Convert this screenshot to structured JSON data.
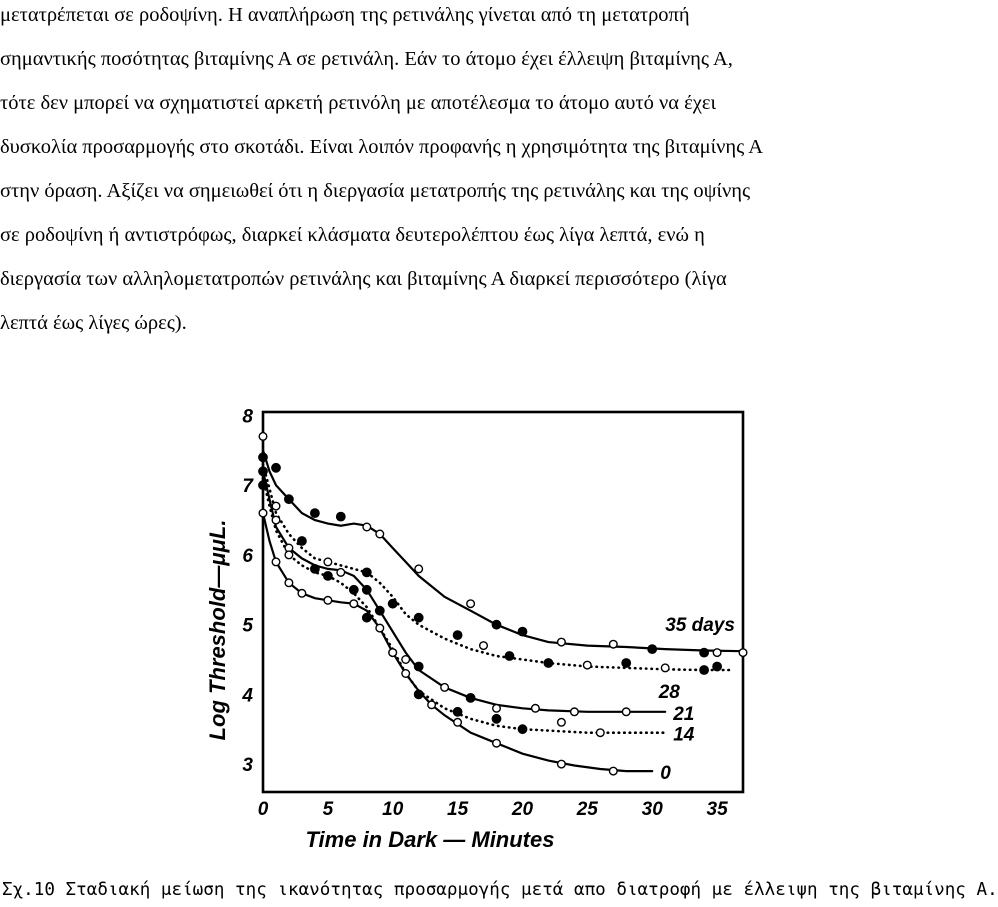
{
  "paragraph": {
    "lines": [
      "μετατρέπεται σε ροδοψίνη. Η αναπλήρωση της ρετινάλης γίνεται από τη μετατροπή",
      "σημαντικής ποσότητας βιταμίνης Α σε ρετινάλη. Εάν το άτομο έχει έλλειψη βιταμίνης Α,",
      "τότε δεν μπορεί να σχηματιστεί αρκετή ρετινόλη με αποτέλεσμα το άτομο αυτό να έχει",
      "δυσκολία προσαρμογής στο σκοτάδι. Είναι λοιπόν προφανής η χρησιμότητα της βιταμίνης Α",
      "στην όραση. Αξίζει να σημειωθεί ότι η διεργασία μετατροπής της ρετινάλης και της οψίνης",
      "σε ροδοψίνη ή αντιστρόφως, διαρκεί κλάσματα δευτερολέπτου έως λίγα λεπτά, ενώ η",
      "διεργασία των αλληλομετατροπών ρετινάλης και βιταμίνης Α διαρκεί περισσότερο (λίγα",
      "λεπτά έως λίγες ώρες)."
    ]
  },
  "figure": {
    "caption": "Σχ.10 Σταδιακή μείωση της ικανότητας προσαρμογής μετά απο διατροφή με έλλειψη της βιταμίνης Α."
  },
  "chart_data": {
    "type": "line",
    "xlabel": "Time in Dark — Minutes",
    "ylabel": "Log Threshold—μμL.",
    "xlim": [
      0,
      37
    ],
    "ylim": [
      2.6,
      8.05
    ],
    "x_ticks": [
      "0",
      "5",
      "10",
      "15",
      "20",
      "25",
      "30",
      "35"
    ],
    "y_ticks": [
      "3",
      "4",
      "5",
      "6",
      "7",
      "8"
    ],
    "grid": false,
    "legend": "labels at right end of curves",
    "series": [
      {
        "name": "35 days",
        "line": "solid",
        "x": [
          0,
          0.5,
          1,
          2,
          3,
          4,
          5,
          6,
          7,
          8,
          9,
          10,
          11,
          12,
          14,
          16,
          18,
          20,
          22,
          25,
          28,
          31,
          34,
          37
        ],
        "y": [
          7.5,
          7.2,
          7.0,
          6.8,
          6.6,
          6.5,
          6.45,
          6.42,
          6.45,
          6.42,
          6.3,
          6.1,
          5.9,
          5.7,
          5.4,
          5.2,
          5.0,
          4.85,
          4.75,
          4.7,
          4.68,
          4.65,
          4.63,
          4.62
        ],
        "points_x": [
          0,
          1,
          2,
          4,
          6,
          8,
          9,
          12,
          16,
          18,
          20,
          23,
          27,
          30,
          34,
          35,
          37
        ],
        "points_y": [
          7.7,
          7.25,
          6.8,
          6.6,
          6.55,
          6.4,
          6.3,
          5.8,
          5.3,
          5.0,
          4.9,
          4.75,
          4.72,
          4.65,
          4.6,
          4.6,
          4.6
        ],
        "points_fill": [
          "open",
          "filled",
          "filled",
          "filled",
          "filled",
          "open",
          "open",
          "open",
          "open",
          "filled",
          "filled",
          "open",
          "open",
          "filled",
          "filled",
          "open",
          "open"
        ]
      },
      {
        "name": "28",
        "line": "dotted",
        "x": [
          0,
          0.5,
          1,
          2,
          3,
          4,
          5,
          6,
          7,
          8,
          9,
          10,
          11,
          12,
          14,
          16,
          18,
          20,
          22,
          25,
          28,
          31,
          34,
          36
        ],
        "y": [
          7.3,
          6.95,
          6.6,
          6.3,
          6.1,
          5.95,
          5.9,
          5.85,
          5.8,
          5.75,
          5.6,
          5.4,
          5.15,
          5.0,
          4.8,
          4.65,
          4.55,
          4.5,
          4.45,
          4.4,
          4.38,
          4.36,
          4.35,
          4.35
        ],
        "points_x": [
          0,
          1,
          3,
          5,
          8,
          10,
          12,
          15,
          17,
          19,
          22,
          25,
          28,
          31,
          34,
          35
        ],
        "points_y": [
          7.4,
          6.7,
          6.2,
          5.9,
          5.75,
          5.3,
          5.1,
          4.85,
          4.7,
          4.55,
          4.45,
          4.42,
          4.45,
          4.38,
          4.35,
          4.4
        ],
        "points_fill": [
          "filled",
          "open",
          "filled",
          "open",
          "filled",
          "filled",
          "filled",
          "filled",
          "open",
          "filled",
          "filled",
          "open",
          "filled",
          "open",
          "filled",
          "filled"
        ]
      },
      {
        "name": "21",
        "line": "solid",
        "x": [
          0,
          0.5,
          1,
          2,
          3,
          4,
          5,
          6,
          7,
          8,
          9,
          10,
          11,
          12,
          14,
          16,
          18,
          20,
          22,
          25,
          28,
          31
        ],
        "y": [
          7.2,
          6.8,
          6.4,
          6.1,
          5.95,
          5.85,
          5.8,
          5.78,
          5.7,
          5.5,
          5.2,
          4.9,
          4.6,
          4.35,
          4.1,
          3.95,
          3.85,
          3.8,
          3.77,
          3.75,
          3.75,
          3.75
        ],
        "points_x": [
          0,
          1,
          2,
          4,
          6,
          8,
          9,
          11,
          12,
          14,
          16,
          18,
          21,
          24,
          28
        ],
        "points_y": [
          7.2,
          6.5,
          6.1,
          5.8,
          5.75,
          5.5,
          5.2,
          4.5,
          4.4,
          4.1,
          3.95,
          3.8,
          3.8,
          3.75,
          3.75
        ],
        "points_fill": [
          "filled",
          "open",
          "open",
          "filled",
          "open",
          "filled",
          "filled",
          "open",
          "filled",
          "open",
          "filled",
          "open",
          "open",
          "open",
          "open"
        ]
      },
      {
        "name": "14",
        "line": "dotted",
        "x": [
          0,
          0.5,
          1,
          2,
          3,
          4,
          5,
          6,
          7,
          8,
          9,
          10,
          11,
          12,
          14,
          16,
          18,
          20,
          22,
          25,
          28,
          31
        ],
        "y": [
          7.1,
          6.7,
          6.35,
          6.0,
          5.85,
          5.75,
          5.7,
          5.6,
          5.45,
          5.25,
          4.95,
          4.65,
          4.3,
          4.05,
          3.8,
          3.65,
          3.55,
          3.5,
          3.48,
          3.45,
          3.45,
          3.45
        ],
        "points_x": [
          0,
          2,
          5,
          7,
          8,
          10,
          12,
          15,
          18,
          20,
          23,
          26
        ],
        "points_y": [
          7.0,
          6.0,
          5.7,
          5.5,
          5.1,
          4.6,
          4.0,
          3.75,
          3.65,
          3.5,
          3.6,
          3.45
        ],
        "points_fill": [
          "filled",
          "open",
          "filled",
          "filled",
          "filled",
          "open",
          "filled",
          "filled",
          "filled",
          "filled",
          "open",
          "open"
        ]
      },
      {
        "name": "0",
        "line": "solid",
        "x": [
          0,
          0.5,
          1,
          2,
          3,
          4,
          5,
          6,
          7,
          8,
          9,
          10,
          11,
          12,
          13,
          14,
          16,
          18,
          20,
          22,
          24,
          26,
          28,
          30
        ],
        "y": [
          6.6,
          6.2,
          5.9,
          5.6,
          5.45,
          5.38,
          5.35,
          5.32,
          5.3,
          5.2,
          4.95,
          4.6,
          4.3,
          4.05,
          3.85,
          3.7,
          3.45,
          3.3,
          3.15,
          3.05,
          2.98,
          2.93,
          2.9,
          2.9
        ],
        "points_x": [
          0,
          1,
          2,
          3,
          5,
          7,
          9,
          10,
          11,
          13,
          15,
          18,
          23,
          27
        ],
        "points_y": [
          6.6,
          5.9,
          5.6,
          5.45,
          5.35,
          5.3,
          4.95,
          4.6,
          4.3,
          3.85,
          3.6,
          3.3,
          3.0,
          2.9
        ],
        "points_fill": [
          "open",
          "open",
          "open",
          "open",
          "open",
          "open",
          "open",
          "open",
          "open",
          "open",
          "open",
          "open",
          "open",
          "open"
        ]
      }
    ]
  }
}
